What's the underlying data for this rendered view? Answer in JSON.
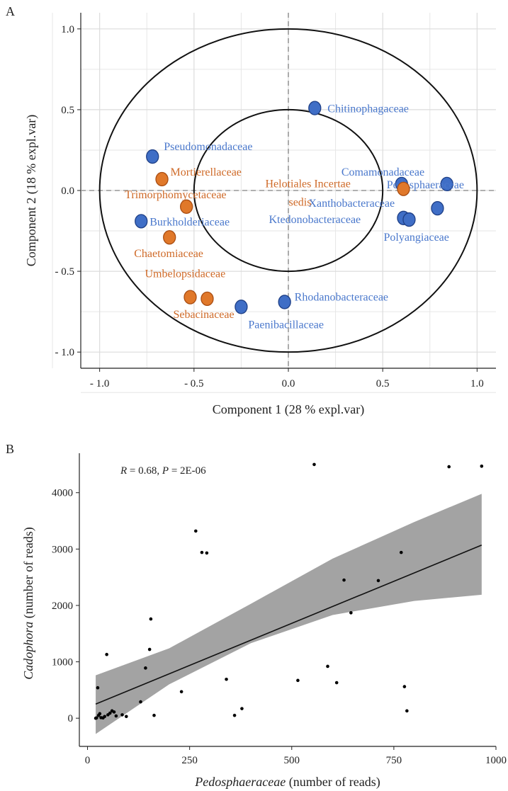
{
  "panels": {
    "a_letter": "A",
    "b_letter": "B"
  },
  "colors": {
    "bacteria": "#3f6ec6",
    "fungi": "#e0782a",
    "bacteria_text": "#4a78cc",
    "fungi_text": "#cf6a28",
    "band": "#999999"
  },
  "chart_data": [
    {
      "type": "scatter",
      "xlabel": "Component 1 (28 % expl.var)",
      "ylabel": "Component 2 (18 % expl.var)",
      "xlim": [
        -1.1,
        1.1
      ],
      "ylim": [
        -1.1,
        1.1
      ],
      "xticks": [
        -1.0,
        -0.5,
        0.0,
        0.5,
        1.0
      ],
      "xtick_labels": [
        "- 1.0",
        "- 0.5",
        "0.0",
        "0.5",
        "1.0"
      ],
      "yticks": [
        -1.0,
        -0.5,
        0.0,
        0.5,
        1.0
      ],
      "ytick_labels": [
        "- 1.0",
        "- 0.5",
        "0.0",
        "0.5",
        "1.0"
      ],
      "circles": [
        0.5,
        1.0
      ],
      "grid": true,
      "points": [
        {
          "label": "Chitinophagaceae",
          "x": 0.14,
          "y": 0.51,
          "group": "bacteria"
        },
        {
          "label": "Pseudomonadaceae",
          "x": -0.72,
          "y": 0.21,
          "group": "bacteria"
        },
        {
          "label": "Comamonadaceae",
          "x": 0.6,
          "y": 0.04,
          "group": "bacteria"
        },
        {
          "label": "Pedosphaeraceae",
          "x": 0.84,
          "y": 0.04,
          "group": "bacteria"
        },
        {
          "label": "Xanthobacteraceae",
          "x": 0.79,
          "y": -0.11,
          "group": "bacteria"
        },
        {
          "label": "Ktedonobacteraceae",
          "x": 0.61,
          "y": -0.17,
          "group": "bacteria"
        },
        {
          "label": "Polyangiaceae",
          "x": 0.64,
          "y": -0.18,
          "group": "bacteria"
        },
        {
          "label": "Burkholderiaceae",
          "x": -0.78,
          "y": -0.19,
          "group": "bacteria"
        },
        {
          "label": "Rhodanobacteraceae",
          "x": -0.02,
          "y": -0.69,
          "group": "bacteria"
        },
        {
          "label": "Paenibacillaceae",
          "x": -0.25,
          "y": -0.72,
          "group": "bacteria"
        },
        {
          "label": "Mortierellaceae",
          "x": -0.67,
          "y": 0.07,
          "group": "fungi"
        },
        {
          "label": "Trimorphomycetaceae",
          "x": -0.54,
          "y": -0.1,
          "group": "fungi"
        },
        {
          "label": "Chaetomiaceae",
          "x": -0.63,
          "y": -0.29,
          "group": "fungi"
        },
        {
          "label": "Helotiales Incertae sedis",
          "x": 0.61,
          "y": 0.01,
          "group": "fungi"
        },
        {
          "label": "Umbelopsidaceae",
          "x": -0.52,
          "y": -0.66,
          "group": "fungi"
        },
        {
          "label": "Sebacinaceae",
          "x": -0.43,
          "y": -0.67,
          "group": "fungi"
        }
      ]
    },
    {
      "type": "scatter",
      "xlabel": "Pedosphaeraceae (number of reads)",
      "ylabel": "Cadophora (number of reads)",
      "xlabel_italic": "Pedosphaeraceae",
      "xlabel_rest": " (number of reads)",
      "ylabel_italic": "Cadophora",
      "ylabel_rest": " (number of reads)",
      "xlim": [
        -20,
        1000
      ],
      "ylim": [
        -500,
        4700
      ],
      "xticks": [
        0,
        250,
        500,
        750,
        1000
      ],
      "yticks": [
        0,
        1000,
        2000,
        3000,
        4000
      ],
      "annotation": {
        "r_symbol": "R",
        "r_rest": " = 0.68, ",
        "p_symbol": "P",
        "p_rest": " = 2E-06"
      },
      "regression": {
        "x0": 20,
        "y0": 250,
        "x1": 965,
        "y1": 3070
      },
      "band": [
        {
          "x": 20,
          "lo": -280,
          "hi": 760
        },
        {
          "x": 200,
          "lo": 600,
          "hi": 1240
        },
        {
          "x": 400,
          "lo": 1330,
          "hi": 2030
        },
        {
          "x": 600,
          "lo": 1830,
          "hi": 2830
        },
        {
          "x": 800,
          "lo": 2080,
          "hi": 3480
        },
        {
          "x": 965,
          "lo": 2190,
          "hi": 3980
        }
      ],
      "points": [
        [
          20,
          0
        ],
        [
          22,
          5
        ],
        [
          25,
          540
        ],
        [
          27,
          50
        ],
        [
          30,
          80
        ],
        [
          33,
          10
        ],
        [
          38,
          5
        ],
        [
          42,
          30
        ],
        [
          47,
          1130
        ],
        [
          50,
          60
        ],
        [
          55,
          90
        ],
        [
          60,
          130
        ],
        [
          65,
          110
        ],
        [
          70,
          40
        ],
        [
          85,
          60
        ],
        [
          95,
          30
        ],
        [
          130,
          290
        ],
        [
          142,
          890
        ],
        [
          152,
          1220
        ],
        [
          155,
          1760
        ],
        [
          163,
          50
        ],
        [
          230,
          470
        ],
        [
          265,
          3320
        ],
        [
          280,
          2940
        ],
        [
          292,
          2930
        ],
        [
          340,
          690
        ],
        [
          360,
          50
        ],
        [
          378,
          170
        ],
        [
          515,
          670
        ],
        [
          555,
          4500
        ],
        [
          588,
          920
        ],
        [
          610,
          630
        ],
        [
          628,
          2450
        ],
        [
          645,
          1870
        ],
        [
          712,
          2440
        ],
        [
          768,
          2940
        ],
        [
          776,
          560
        ],
        [
          782,
          130
        ],
        [
          885,
          4460
        ],
        [
          965,
          4470
        ]
      ]
    }
  ]
}
